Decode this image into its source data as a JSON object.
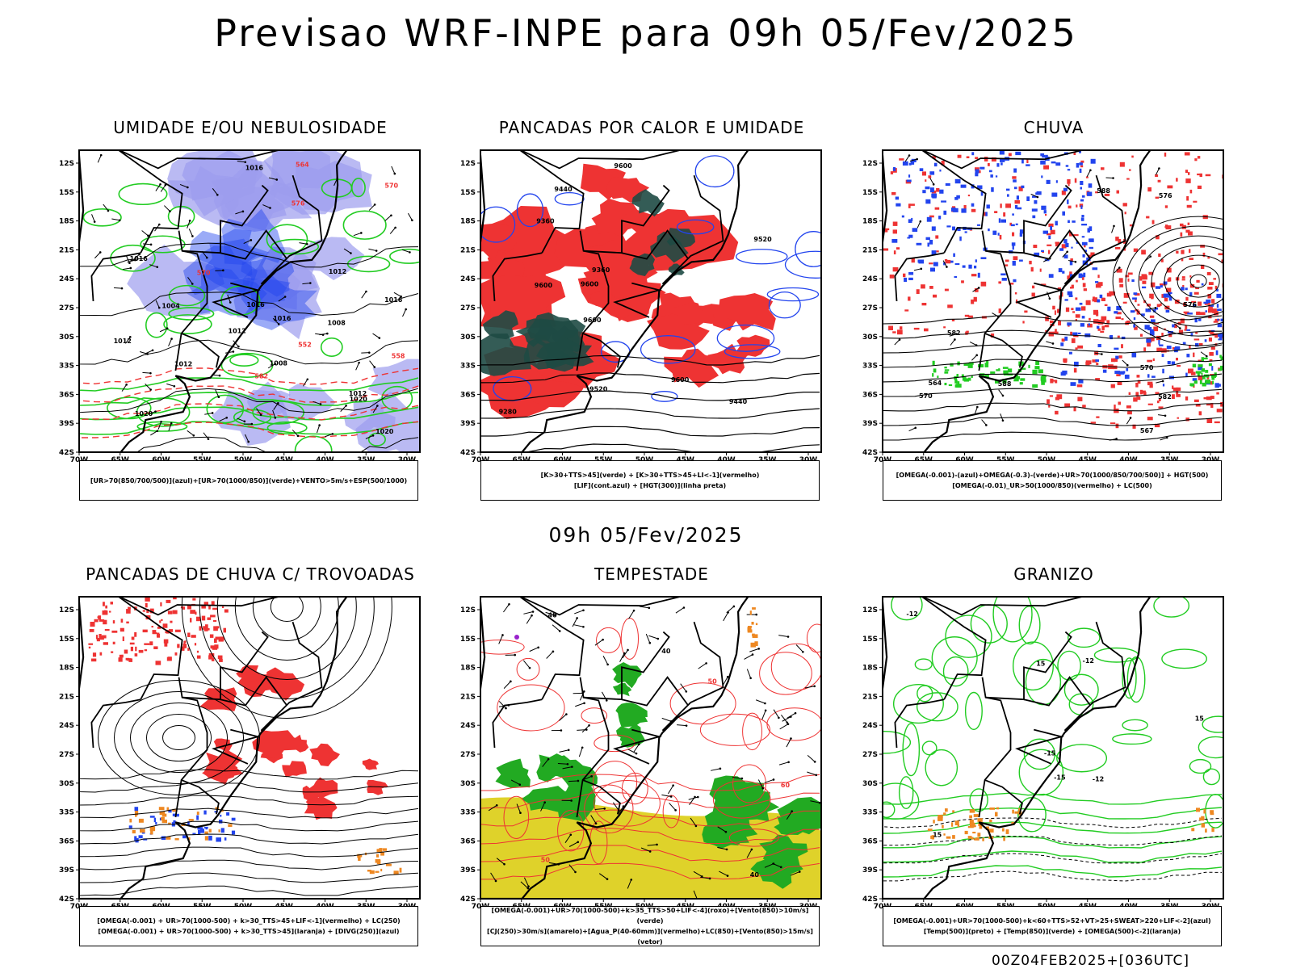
{
  "header": {
    "title": "Previsao WRF-INPE  para 09h 05/Fev/2025"
  },
  "subheader": {
    "label": "09h 05/Fev/2025"
  },
  "footer": {
    "code": "00Z04FEB2025+[036UTC]"
  },
  "axes": {
    "lat": [
      "12S",
      "15S",
      "18S",
      "21S",
      "24S",
      "27S",
      "30S",
      "33S",
      "36S",
      "39S",
      "42S"
    ],
    "lon": [
      "70W",
      "65W",
      "60W",
      "55W",
      "50W",
      "45W",
      "40W",
      "35W",
      "30W"
    ]
  },
  "colors": {
    "green": "#22cc22",
    "red": "#ee3333",
    "blue": "#2244ee",
    "lavender": "#9c9cee",
    "darkteal": "#1e4a44",
    "yellow": "#dfd22a",
    "orange": "#ee8822",
    "purple": "#9922cc"
  },
  "panels": [
    {
      "title": "UMIDADE E/OU NEBULOSIDADE",
      "legend": [
        "[UR>70(850/700/500)](azul)+[UR>70(1000/850)](verde)+VENTO>5m/s+ESP(500/1000)"
      ],
      "labels": [
        "1016",
        "1012",
        "1016",
        "1020",
        "1016",
        "1012",
        "1008",
        "1004",
        "1012",
        "1008",
        "1012",
        "1016",
        "1020",
        "1016",
        "1012",
        "1020",
        "576",
        "582",
        "570",
        "564",
        "558",
        "552",
        "570"
      ]
    },
    {
      "title": "PANCADAS POR CALOR E UMIDADE",
      "legend": [
        "[K>30+TTS>45](verde) + [K>30+TTS>45+LI<-1](vermelho)",
        "[LIF](cont.azul) + [HGT(300)](linha preta)"
      ],
      "labels": [
        "9600",
        "9600",
        "9600",
        "9600",
        "9520",
        "9520",
        "9440",
        "9440",
        "9360",
        "9360",
        "9280",
        "9600"
      ]
    },
    {
      "title": "CHUVA",
      "legend": [
        "[OMEGA(-0.001)-(azul)+OMEGA(-0.3)-(verde)+UR>70(1000/850/700/500)] + HGT(500)",
        "[OMEGA(-0.01)_UR>50(1000/850)(vermelho) + LC(500)"
      ],
      "labels": [
        "588",
        "588",
        "582",
        "582",
        "576",
        "570",
        "564",
        "576",
        "570",
        "567"
      ]
    },
    {
      "title": "PANCADAS DE CHUVA C/ TROVOADAS",
      "legend": [
        "[OMEGA(-0.001) + UR>70(1000-500) + k>30_TTS>45+LIF<-1](vermelho) + LC(250)",
        "[OMEGA(-0.001) + UR>70(1000-500) + k>30_TTS>45](laranja) + [DIVG(250)](azul)"
      ],
      "labels": []
    },
    {
      "title": "TEMPESTADE",
      "legend": [
        "[OMEGA(-0.001)+UR>70(1000-500)+k>35_TTS>50+LIF<-4](roxo)+[Vento(850)>10m/s](verde)",
        "[CJ(250)>30m/s](amarelo)+[Agua_P(40-60mm)](vermelho)+LC(850)+[Vento(850)>15m/s](vetor)"
      ],
      "labels": [
        "50",
        "40",
        "50",
        "40",
        "60",
        "40"
      ]
    },
    {
      "title": "GRANIZO",
      "legend": [
        "[OMEGA(-0.001)+UR>70(1000-500)+k<60+TTS>52+VT>25+SWEAT>220+LIF<-2](azul)",
        "[Temp(500)](preto) + [Temp(850)](verde) + [OMEGA(500)<-2](laranja)"
      ],
      "labels": [
        "-12",
        "-15",
        "-12",
        "-15",
        "-12",
        "15",
        "15",
        "15"
      ]
    }
  ]
}
